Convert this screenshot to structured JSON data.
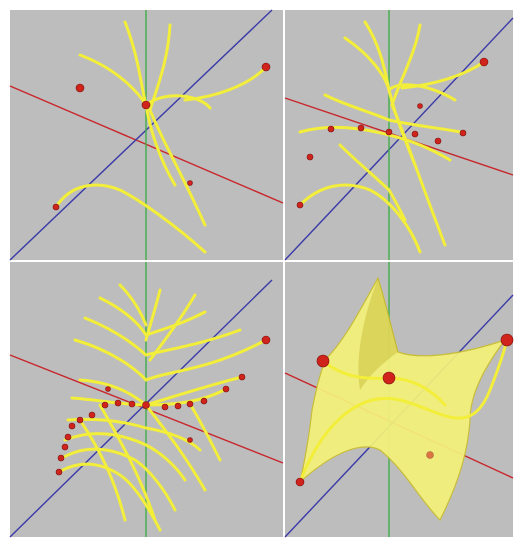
{
  "colors": {
    "page_border": "#ffffff",
    "background": "#bdbdbd",
    "axis_x": "#c8262b",
    "axis_y": "#3a3aa8",
    "axis_z": "#3fae4a",
    "curve": "#f2ee3a",
    "curve_edge": "#b5a81c",
    "surface_fill": "#f5f27a",
    "surface_edge": "#c9bd2d",
    "point": "#d0231c",
    "point_edge": "#7a1210"
  },
  "panels": [
    {
      "id": "top-left",
      "stage": "sparse-curves",
      "curve_count": 5,
      "point_count": 5,
      "surface": false
    },
    {
      "id": "top-right",
      "stage": "more-curves",
      "curve_count": 8,
      "point_count": 10,
      "surface": false
    },
    {
      "id": "bottom-left",
      "stage": "dense-curves",
      "curve_count": 16,
      "point_count": 20,
      "surface": false
    },
    {
      "id": "bottom-right",
      "stage": "saddle-surface",
      "curve_count": 2,
      "point_count": 5,
      "surface": true
    }
  ]
}
